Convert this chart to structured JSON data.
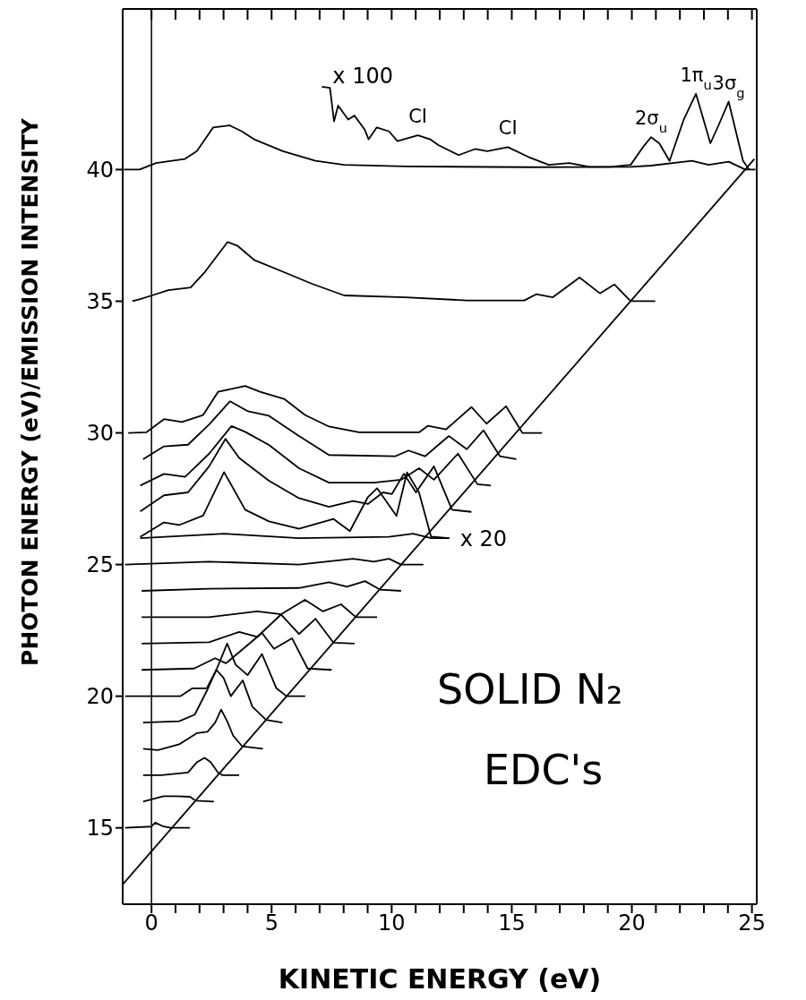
{
  "chart_data": {
    "type": "line",
    "title": "SOLID N₂",
    "subtitle": "EDC's",
    "xlabel": "KINETIC ENERGY (eV)",
    "ylabel": "PHOTON ENERGY (eV)/EMISSION INTENSITY",
    "xlim": [
      -1.2,
      25.2
    ],
    "ylim": [
      12.1,
      46.1
    ],
    "xticks": [
      0,
      {
        "value": 1,
        "label": null
      },
      {
        "value": 2,
        "label": null
      },
      {
        "value": 3,
        "label": null
      },
      {
        "value": 4,
        "label": null
      },
      5,
      {
        "value": 6,
        "label": null
      },
      {
        "value": 7,
        "label": null
      },
      {
        "value": 8,
        "label": null
      },
      {
        "value": 9,
        "label": null
      },
      10,
      {
        "value": 11,
        "label": null
      },
      {
        "value": 12,
        "label": null
      },
      {
        "value": 13,
        "label": null
      },
      {
        "value": 14,
        "label": null
      },
      15,
      {
        "value": 16,
        "label": null
      },
      {
        "value": 17,
        "label": null
      },
      {
        "value": 18,
        "label": null
      },
      {
        "value": 19,
        "label": null
      },
      20,
      {
        "value": 21,
        "label": null
      },
      {
        "value": 22,
        "label": null
      },
      {
        "value": 23,
        "label": null
      },
      {
        "value": 24,
        "label": null
      },
      25
    ],
    "yticks": [
      15,
      20,
      25,
      30,
      35,
      40
    ],
    "ref_lines": [
      {
        "axis": "x",
        "value": 0,
        "color": "#000000"
      }
    ],
    "annotations": [
      {
        "text": "x 100",
        "x": 7.09,
        "y": 43.15
      },
      {
        "text": "CI",
        "x": 11.09,
        "y": 41.3
      },
      {
        "text": "CI",
        "x": 14.84,
        "y": 40.85
      },
      {
        "text": "2σ$_{u}$",
        "x": 20.8,
        "y": 41.23
      },
      {
        "text": "1π$_{u}$",
        "x": 22.67,
        "y": 42.88
      },
      {
        "text": "3σ$_{g}$",
        "x": 24.03,
        "y": 42.58
      },
      {
        "text": "x 20",
        "x": 12.4,
        "y": 26.0
      }
    ],
    "series": [
      {
        "color": "#000000",
        "x": [
          -1.15,
          -0.5,
          0.19,
          1.38,
          1.89,
          2.57,
          3.25,
          3.76,
          4.27,
          5.47,
          6.83,
          8.02,
          10.58,
          15.69,
          19.95,
          20.8,
          22.5,
          23.2,
          24.03,
          24.72,
          25.15
        ],
        "values": [
          40,
          40,
          40.25,
          40.4,
          40.7,
          41.6,
          41.68,
          41.45,
          41.15,
          40.7,
          40.33,
          40.18,
          40.12,
          40.09,
          40.1,
          40.15,
          40.33,
          40.18,
          40.3,
          40,
          40
        ]
      },
      {
        "color": "#000000",
        "x": [
          7.09,
          7.43,
          7.6,
          7.77,
          8.19,
          8.45,
          8.87,
          9.04,
          9.38,
          9.89,
          10.24,
          11.09,
          11.6,
          11.94,
          12.79,
          13.47,
          13.98,
          14.84,
          15.69,
          16.54,
          17.39,
          18.24,
          19.1,
          19.95,
          20.46,
          20.8,
          21.14,
          21.57,
          22.16,
          22.67,
          23.27,
          23.61,
          24.03,
          24.63,
          24.89
        ],
        "values": [
          43.15,
          43.1,
          41.83,
          42.43,
          41.9,
          42.05,
          41.53,
          41.15,
          41.6,
          41.45,
          41.08,
          41.3,
          41.15,
          40.93,
          40.55,
          40.78,
          40.7,
          40.85,
          40.48,
          40.18,
          40.25,
          40.1,
          40.1,
          40.18,
          40.85,
          41.23,
          41.0,
          40.33,
          41.9,
          42.88,
          41.0,
          41.68,
          42.58,
          40.33,
          40
        ]
      },
      {
        "color": "#000000",
        "x": [
          -0.8,
          -0.5,
          0.02,
          0.7,
          1.63,
          2.23,
          3.17,
          3.59,
          4.27,
          5.47,
          6.66,
          8.02,
          10.58,
          13.13,
          15.52,
          16.03,
          16.71,
          17.82,
          18.67,
          19.27,
          19.95,
          20.97
        ],
        "values": [
          35,
          35.07,
          35.22,
          35.42,
          35.52,
          36.12,
          37.25,
          37.1,
          36.57,
          36.12,
          35.67,
          35.22,
          35.15,
          35.03,
          35.03,
          35.27,
          35.15,
          35.9,
          35.3,
          35.64,
          35,
          35
        ]
      },
      {
        "color": "#000000",
        "x": [
          -0.97,
          -0.22,
          0.52,
          1.27,
          2.15,
          2.77,
          3.9,
          4.52,
          5.52,
          6.39,
          7.39,
          8.64,
          11.14,
          11.51,
          12.26,
          13.32,
          13.95,
          14.76,
          15.44,
          16.26
        ],
        "values": [
          30,
          30.02,
          30.52,
          30.41,
          30.68,
          31.56,
          31.78,
          31.56,
          31.29,
          30.68,
          30.24,
          30.02,
          30.02,
          30.27,
          30.13,
          30.98,
          30.35,
          31.01,
          30,
          30
        ]
      },
      {
        "color": "#000000",
        "x": [
          -0.35,
          0.52,
          1.52,
          2.4,
          3.27,
          4.02,
          4.89,
          6.14,
          7.39,
          10.14,
          10.7,
          11.39,
          12.38,
          13.13,
          13.82,
          14.51,
          15.19
        ],
        "values": [
          29,
          29.49,
          29.55,
          30.32,
          31.2,
          30.82,
          30.65,
          29.88,
          29.16,
          29.11,
          29.33,
          29.11,
          29.88,
          29.38,
          30.1,
          29.11,
          29
        ]
      },
      {
        "color": "#000000",
        "x": [
          -0.47,
          0.52,
          1.4,
          2.4,
          3.33,
          3.9,
          4.89,
          6.14,
          7.39,
          9.26,
          10.39,
          11.14,
          11.76,
          12.76,
          13.57,
          14.13
        ],
        "values": [
          28,
          28.44,
          28.33,
          29.21,
          30.26,
          30.04,
          29.54,
          28.66,
          28.11,
          28.11,
          28.22,
          28.66,
          28.22,
          29.21,
          28.05,
          28
        ]
      },
      {
        "color": "#000000",
        "x": [
          -0.47,
          0.52,
          1.52,
          2.4,
          3.08,
          3.65,
          4.89,
          6.14,
          7.39,
          8.39,
          9.01,
          9.64,
          10.01,
          10.51,
          11.01,
          11.76,
          12.51,
          13.32
        ],
        "values": [
          27.02,
          27.63,
          27.74,
          28.73,
          29.77,
          29.05,
          28.18,
          27.52,
          27.19,
          27.41,
          27.3,
          27.74,
          27.68,
          28.45,
          27.74,
          28.73,
          27.08,
          27
        ]
      },
      {
        "color": "#000000",
        "x": [
          -0.47,
          3.02,
          6.14,
          9.89,
          10.89,
          11.64,
          12.39
        ],
        "values": [
          26,
          26.17,
          26,
          26.05,
          26.17,
          26,
          26
        ]
      },
      {
        "color": "#000000",
        "x": [
          -0.47,
          0.52,
          1.15,
          2.15,
          3.02,
          3.9,
          4.89,
          6.14,
          7.58,
          8.26,
          9.01,
          9.39,
          10.2,
          10.64,
          11.14,
          11.64,
          12.4
        ],
        "values": [
          26.05,
          26.6,
          26.5,
          26.86,
          28.51,
          27.08,
          26.64,
          26.36,
          26.73,
          26.27,
          27.56,
          27.9,
          26.85,
          28.5,
          27.73,
          26.06,
          26.0
        ]
      },
      {
        "color": "#000000",
        "x": [
          -1.1,
          2.4,
          6.14,
          8.39,
          9.26,
          9.89,
          10.39,
          11.32
        ],
        "values": [
          25,
          25.11,
          25,
          25.22,
          25.11,
          25.22,
          25,
          25
        ]
      },
      {
        "color": "#000000",
        "x": [
          -0.41,
          2.4,
          6.14,
          7.39,
          8.14,
          8.89,
          9.51,
          10.39
        ],
        "values": [
          24,
          24.08,
          24.11,
          24.33,
          24.16,
          24.37,
          24.05,
          24
        ]
      },
      {
        "color": "#000000",
        "x": [
          -0.41,
          2.4,
          4.4,
          5.39,
          6.39,
          7.14,
          7.89,
          8.51,
          9.39
        ],
        "values": [
          23,
          23,
          23.22,
          23.11,
          23.66,
          23.22,
          23.49,
          23,
          23
        ]
      },
      {
        "color": "#000000",
        "x": [
          -0.41,
          2.4,
          3.65,
          4.4,
          5.39,
          6.14,
          6.83,
          7.58,
          8.45
        ],
        "values": [
          22,
          22.05,
          22.44,
          22.25,
          23.1,
          22.36,
          22.94,
          22.03,
          22
        ]
      },
      {
        "color": "#000000",
        "x": [
          -0.41,
          1.77,
          2.65,
          3.1,
          4.6,
          5.1,
          5.85,
          6.5,
          7.5
        ],
        "values": [
          21,
          21.05,
          21.44,
          21.25,
          22.4,
          21.8,
          22.2,
          21.05,
          21
        ]
      },
      {
        "color": "#000000",
        "x": [
          -1.1,
          1.2,
          1.7,
          2.3,
          2.7,
          3.15,
          3.5,
          4.0,
          4.6,
          5.2,
          5.62,
          6.4
        ],
        "values": [
          20,
          20,
          20.3,
          20.3,
          21,
          22,
          21.2,
          20.8,
          21.6,
          20.3,
          20,
          20
        ]
      },
      {
        "color": "#000000",
        "x": [
          -0.35,
          1.15,
          1.8,
          2.3,
          2.7,
          3.0,
          3.3,
          3.8,
          4.2,
          4.77,
          5.45
        ],
        "values": [
          19,
          19.05,
          19.3,
          20.2,
          21,
          20.7,
          20,
          20.6,
          19.6,
          19.1,
          19
        ]
      },
      {
        "color": "#000000",
        "x": [
          -0.35,
          0.27,
          1.15,
          1.9,
          2.33,
          2.65,
          2.9,
          3.15,
          3.4,
          3.77,
          4.64
        ],
        "values": [
          18,
          17.95,
          18.17,
          18.6,
          18.65,
          19.0,
          19.49,
          19.05,
          18.5,
          18.1,
          18
        ]
      },
      {
        "color": "#000000",
        "x": [
          -0.35,
          0.4,
          1.52,
          1.9,
          2.21,
          2.46,
          2.77,
          2.96,
          3.65
        ],
        "values": [
          17,
          17,
          17.1,
          17.5,
          17.66,
          17.5,
          17.1,
          17,
          17
        ]
      },
      {
        "color": "#000000",
        "x": [
          -0.35,
          0.5,
          1.0,
          1.6,
          1.85,
          2.6
        ],
        "values": [
          16,
          16.2,
          16.2,
          16.18,
          16.03,
          16
        ]
      },
      {
        "color": "#000000",
        "x": [
          -1.1,
          0,
          0.15,
          0.5,
          0.8,
          1.6
        ],
        "values": [
          15,
          15.05,
          15.2,
          15.05,
          15,
          15
        ]
      },
      {
        "color": "#000000",
        "x": [
          -1.2,
          25.1
        ],
        "values": [
          12.85,
          40.4
        ]
      }
    ]
  }
}
